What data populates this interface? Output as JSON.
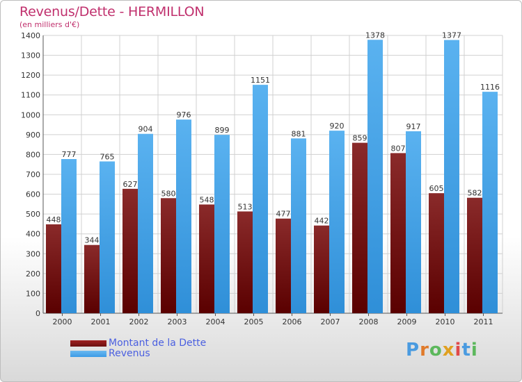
{
  "title": "Revenus/Dette - HERMILLON",
  "subtitle": "(en milliers d'€)",
  "legend": [
    {
      "label": "Montant de la Dette",
      "color": "#6b0f0f"
    },
    {
      "label": "Revenus",
      "color": "#3d9be6"
    }
  ],
  "logo": {
    "text": "Proxiti",
    "letters": [
      {
        "ch": "P",
        "color": "#4a9be0"
      },
      {
        "ch": "r",
        "color": "#e07a2a"
      },
      {
        "ch": "o",
        "color": "#5cb85c"
      },
      {
        "ch": "x",
        "color": "#e0a020"
      },
      {
        "ch": "i",
        "color": "#e04a4a"
      },
      {
        "ch": "t",
        "color": "#4a9be0"
      },
      {
        "ch": "i",
        "color": "#5cb85c"
      }
    ]
  },
  "colors": {
    "debt_bar": "#7a1a1a",
    "revenue_bar": "#4aa3e8",
    "grid": "#d0d0d0",
    "axis_text": "#333333"
  },
  "chart_data": {
    "type": "bar",
    "title": "Revenus/Dette - HERMILLON",
    "subtitle": "(en milliers d'€)",
    "categories": [
      "2000",
      "2001",
      "2002",
      "2003",
      "2004",
      "2005",
      "2006",
      "2007",
      "2008",
      "2009",
      "2010",
      "2011"
    ],
    "series": [
      {
        "name": "Montant de la Dette",
        "values": [
          448,
          344,
          627,
          580,
          548,
          513,
          477,
          442,
          859,
          807,
          605,
          582
        ]
      },
      {
        "name": "Revenus",
        "values": [
          777,
          765,
          904,
          976,
          899,
          1151,
          881,
          920,
          1378,
          917,
          1377,
          1116
        ]
      }
    ],
    "ylim": [
      0,
      1400
    ],
    "yticks": [
      0,
      100,
      200,
      300,
      400,
      500,
      600,
      700,
      800,
      900,
      1000,
      1100,
      1200,
      1300,
      1400
    ],
    "grid": true,
    "legend_position": "bottom-left"
  }
}
